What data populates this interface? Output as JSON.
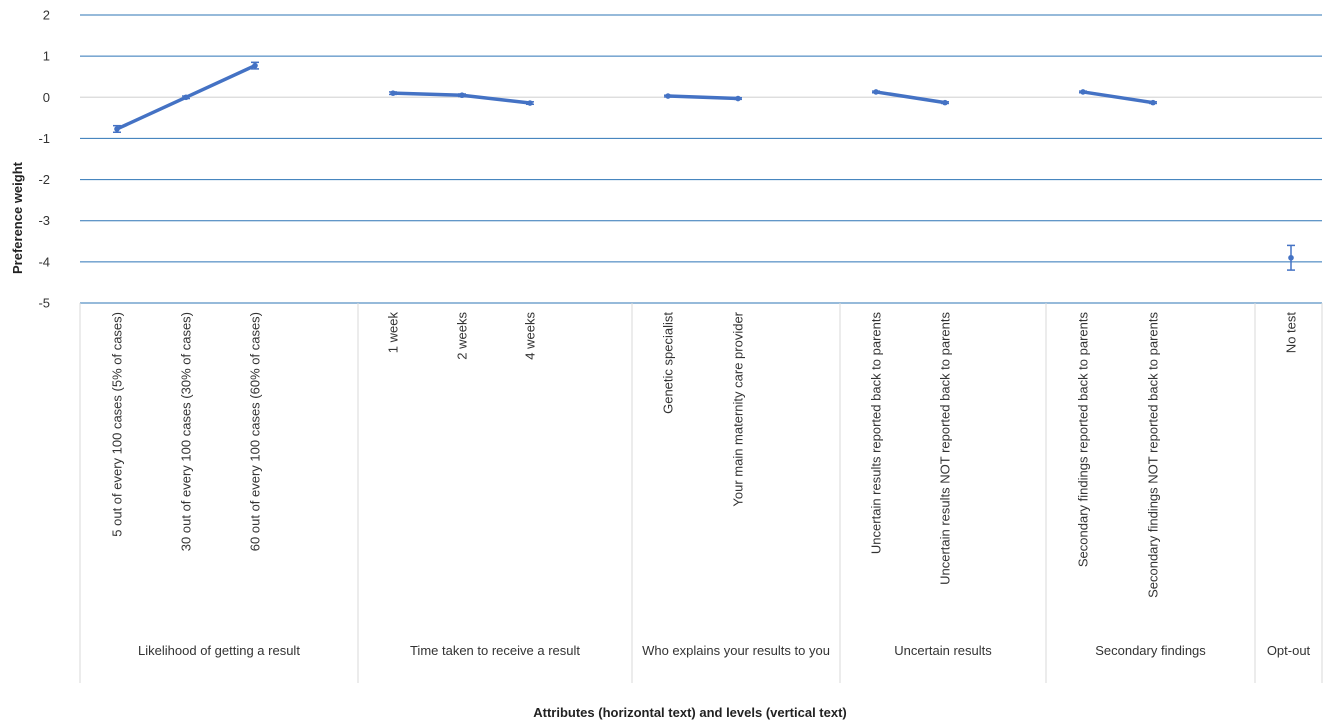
{
  "chart_data": {
    "type": "line",
    "xlabel": "Attributes (horizontal text) and levels (vertical text)",
    "ylabel": "Preference weight",
    "ylim": [
      -5,
      2
    ],
    "yticks": [
      2,
      1,
      0,
      -1,
      -2,
      -3,
      -4,
      -5
    ],
    "grid": true,
    "legend": "none",
    "series_color": "#4472C4",
    "gridline_color": "#2E75B6",
    "zero_line_color": "#D9D9D9",
    "categories": [
      "5 out of every 100 cases (5% of cases)",
      "30 out of every 100 cases (30% of cases)",
      "60 out of every 100 cases (60% of cases)",
      "1 week",
      "2 weeks",
      "4 weeks",
      "Genetic specialist",
      "Your main maternity care provider",
      "Uncertain results reported back to parents",
      "Uncertain results NOT reported back to parents",
      "Secondary findings reported back to parents",
      "Secondary findings NOT reported back to parents",
      "No test"
    ],
    "groups": [
      {
        "name": "Likelihood of getting a result",
        "count": 3
      },
      {
        "name": "Time taken to receive a result",
        "count": 3
      },
      {
        "name": "Who explains your results to you",
        "count": 2
      },
      {
        "name": "Uncertain results",
        "count": 2
      },
      {
        "name": "Secondary findings",
        "count": 2
      },
      {
        "name": "Opt-out",
        "count": 1
      }
    ],
    "segments": [
      {
        "group": "Likelihood of getting a result",
        "values": [
          -0.77,
          0.0,
          0.77
        ],
        "errors": [
          0.08,
          0.03,
          0.08
        ]
      },
      {
        "group": "Time taken to receive a result",
        "values": [
          0.1,
          0.05,
          -0.14
        ],
        "errors": [
          0.03,
          0.03,
          0.03
        ]
      },
      {
        "group": "Who explains your results to you",
        "values": [
          0.03,
          -0.03
        ],
        "errors": [
          0.02,
          0.02
        ]
      },
      {
        "group": "Uncertain results",
        "values": [
          0.13,
          -0.13
        ],
        "errors": [
          0.02,
          0.02
        ]
      },
      {
        "group": "Secondary findings",
        "values": [
          0.13,
          -0.13
        ],
        "errors": [
          0.02,
          0.02
        ]
      },
      {
        "group": "Opt-out",
        "values": [
          -3.9
        ],
        "errors": [
          0.3
        ]
      }
    ]
  }
}
